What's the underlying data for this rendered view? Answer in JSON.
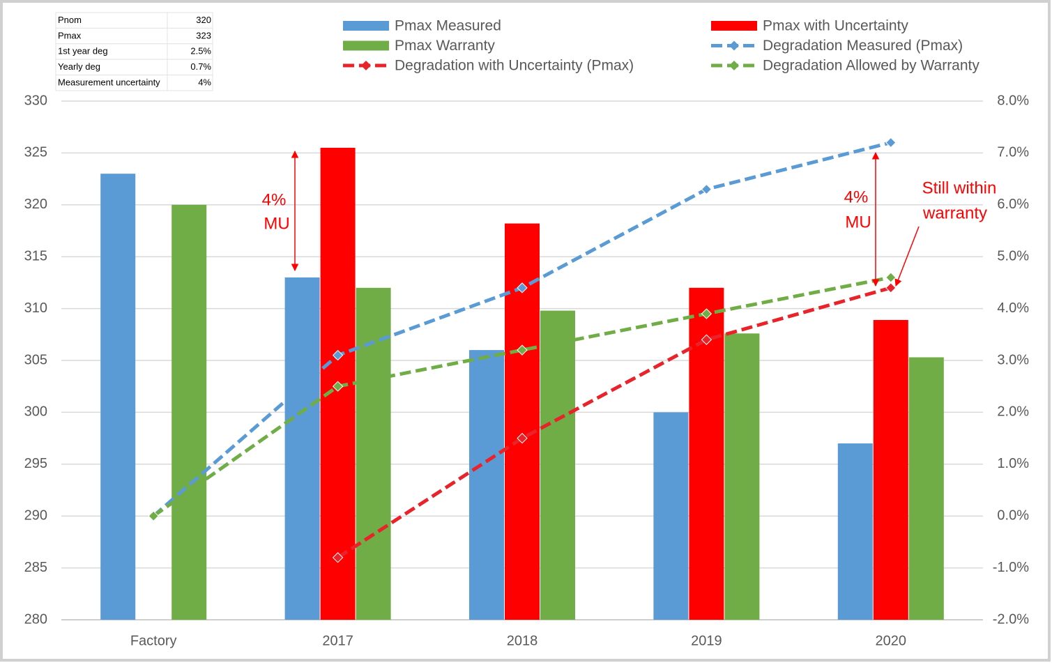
{
  "chart_data": {
    "type": "bar",
    "categories": [
      "Factory",
      "2017",
      "2018",
      "2019",
      "2020"
    ],
    "series": [
      {
        "name": "Pmax Measured",
        "type": "bar",
        "color": "#5b9bd5",
        "values": [
          323,
          313,
          306,
          300,
          297
        ]
      },
      {
        "name": "Pmax with Uncertainty",
        "type": "bar",
        "color": "#ff0000",
        "values": [
          null,
          325.5,
          318.2,
          312,
          308.9
        ]
      },
      {
        "name": "Pmax Warranty",
        "type": "bar",
        "color": "#70ad47",
        "values": [
          320,
          312,
          309.8,
          307.6,
          305.3
        ]
      },
      {
        "name": "Degradation Measured (Pmax)",
        "type": "line",
        "axis": "y2",
        "color": "#5b9bd5",
        "values": [
          0,
          3.1,
          4.4,
          6.3,
          7.2
        ]
      },
      {
        "name": "Degradation with Uncertainty (Pmax)",
        "type": "line",
        "axis": "y2",
        "color": "#e8232a",
        "values": [
          null,
          -0.8,
          1.5,
          3.4,
          4.4
        ]
      },
      {
        "name": "Degradation Allowed by Warranty",
        "type": "line",
        "axis": "y2",
        "color": "#70ad47",
        "values": [
          0,
          2.5,
          3.2,
          3.9,
          4.6
        ]
      }
    ],
    "ylim": [
      280,
      330
    ],
    "yticks": [
      280,
      285,
      290,
      295,
      300,
      305,
      310,
      315,
      320,
      325,
      330
    ],
    "y2lim": [
      -2,
      8
    ],
    "y2ticks": [
      {
        "value": -2,
        "label": "-2.0%"
      },
      {
        "value": -1,
        "label": "-1.0%"
      },
      {
        "value": 0,
        "label": "0.0%"
      },
      {
        "value": 1,
        "label": "1.0%"
      },
      {
        "value": 2,
        "label": "2.0%"
      },
      {
        "value": 3,
        "label": "3.0%"
      },
      {
        "value": 4,
        "label": "4.0%"
      },
      {
        "value": 5,
        "label": "5.0%"
      },
      {
        "value": 6,
        "label": "6.0%"
      },
      {
        "value": 7,
        "label": "7.0%"
      },
      {
        "value": 8,
        "label": "8.0%"
      }
    ],
    "grid": true,
    "legend": "top",
    "annotations": [
      [
        "4%",
        "MU"
      ],
      [
        "4%",
        "MU"
      ],
      [
        "Still within",
        "warranty"
      ]
    ]
  },
  "table": {
    "rows": [
      [
        "Pnom",
        "320"
      ],
      [
        "Pmax",
        "323"
      ],
      [
        "1st year deg",
        "2.5%"
      ],
      [
        "Yearly deg",
        "0.7%"
      ],
      [
        "Measurement uncertainty",
        "4%"
      ]
    ]
  }
}
